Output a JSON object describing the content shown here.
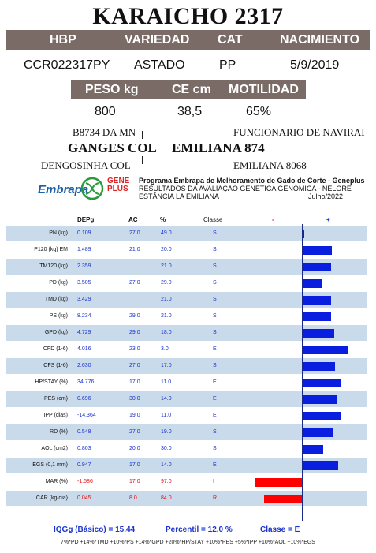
{
  "title": "KARAICHO 2317",
  "header": {
    "hbp": "HBP",
    "variedade": "VARIEDAD",
    "cat": "CAT",
    "nacimiento": "NACIMIENTO"
  },
  "animal": {
    "hbp": "CCR022317PY",
    "variedade": "ASTADO",
    "cat": "PP",
    "nacimiento": "5/9/2019"
  },
  "header2": {
    "peso": "PESO kg",
    "ce": "CE cm",
    "motilidad": "MOTILIDAD"
  },
  "measures": {
    "peso": "800",
    "ce": "38,5",
    "motilidad": "65%"
  },
  "pedigree": {
    "sire_sire": "B8734 DA MN",
    "sire": "GANGES COL",
    "sire_dam": "DENGOSINHA COL",
    "dam_sire": "FUNCIONARIO DE NAVIRAI",
    "dam": "EMILIANA 874",
    "dam_dam": "EMILIANA 8068"
  },
  "logos": {
    "embrapa": "Embrapa",
    "gene": "GENE",
    "plus": "PLUS"
  },
  "program": {
    "title": "Programa Embrapa de Melhoramento de Gado de Corte - Geneplus",
    "subtitle": "RESULTADOS DA AVALIAÇÃO GENÉTICA GENÔMICA - NELORE",
    "farm": "ESTÂNCIA LA EMILIANA",
    "date": "Julho/2022"
  },
  "table": {
    "headers": {
      "depg": "DEPg",
      "ac": "AC",
      "pct": "%",
      "classe": "Classe",
      "minus": "-",
      "plus": "+"
    },
    "rows": [
      {
        "trait": "PN (kg)",
        "depg": "0.109",
        "ac": "27.0",
        "pct": "49.0",
        "classe": "S",
        "bar": 3,
        "neg": false
      },
      {
        "trait": "P120 (kg) EM",
        "depg": "1.489",
        "ac": "21.0",
        "pct": "20.0",
        "classe": "S",
        "bar": 38,
        "neg": false
      },
      {
        "trait": "TM120 (kg)",
        "depg": "2.359",
        "ac": "",
        "pct": "21.0",
        "classe": "S",
        "bar": 37,
        "neg": false
      },
      {
        "trait": "PD (kg)",
        "depg": "3.505",
        "ac": "27.0",
        "pct": "29.0",
        "classe": "S",
        "bar": 26,
        "neg": false
      },
      {
        "trait": "TMD (kg)",
        "depg": "3.429",
        "ac": "",
        "pct": "21.0",
        "classe": "S",
        "bar": 37,
        "neg": false
      },
      {
        "trait": "PS (kg)",
        "depg": "8.234",
        "ac": "29.0",
        "pct": "21.0",
        "classe": "S",
        "bar": 37,
        "neg": false
      },
      {
        "trait": "GPD (kg)",
        "depg": "4.729",
        "ac": "29.0",
        "pct": "18.0",
        "classe": "S",
        "bar": 41,
        "neg": false
      },
      {
        "trait": "CFD (1-6)",
        "depg": "4.016",
        "ac": "23.0",
        "pct": "3.0",
        "classe": "E",
        "bar": 59,
        "neg": false
      },
      {
        "trait": "CFS (1-6)",
        "depg": "2.630",
        "ac": "27.0",
        "pct": "17.0",
        "classe": "S",
        "bar": 42,
        "neg": false
      },
      {
        "trait": "HP/STAY (%)",
        "depg": "34.776",
        "ac": "17.0",
        "pct": "11.0",
        "classe": "E",
        "bar": 49,
        "neg": false
      },
      {
        "trait": "PES (cm)",
        "depg": "0.696",
        "ac": "30.0",
        "pct": "14.0",
        "classe": "E",
        "bar": 45,
        "neg": false
      },
      {
        "trait": "IPP (dias)",
        "depg": "-14.364",
        "ac": "19.0",
        "pct": "11.0",
        "classe": "E",
        "bar": 49,
        "neg": false
      },
      {
        "trait": "RD (%)",
        "depg": "0.548",
        "ac": "27.0",
        "pct": "19.0",
        "classe": "S",
        "bar": 40,
        "neg": false
      },
      {
        "trait": "AOL (cm2)",
        "depg": "0.803",
        "ac": "20.0",
        "pct": "30.0",
        "classe": "S",
        "bar": 27,
        "neg": false
      },
      {
        "trait": "EGS (0,1 mm)",
        "depg": "0.947",
        "ac": "17.0",
        "pct": "14.0",
        "classe": "E",
        "bar": 46,
        "neg": false
      },
      {
        "trait": "MAR (%)",
        "depg": "-1.586",
        "ac": "17.0",
        "pct": "97.0",
        "classe": "I",
        "bar": 60,
        "neg": true
      },
      {
        "trait": "CAR (kg/dia)",
        "depg": "0.045",
        "ac": "8.0",
        "pct": "84.0",
        "classe": "R",
        "bar": 48,
        "neg": true
      }
    ]
  },
  "summary": {
    "iqgg": "IQGg (Básico) = 15.44",
    "percentil": "Percentil = 12.0 %",
    "classe": "Classe = E"
  },
  "formula": "7%*PD +14%*TMD +10%*PS +14%*GPD +20%*HP/STAY +10%*PES +5%*IPP +10%*AOL +10%*EGS",
  "colors": {
    "header_bg": "#7a6b66",
    "row_shade": "#c9daea",
    "bar_pos": "#0a1ee0",
    "bar_neg": "#ff0000"
  }
}
